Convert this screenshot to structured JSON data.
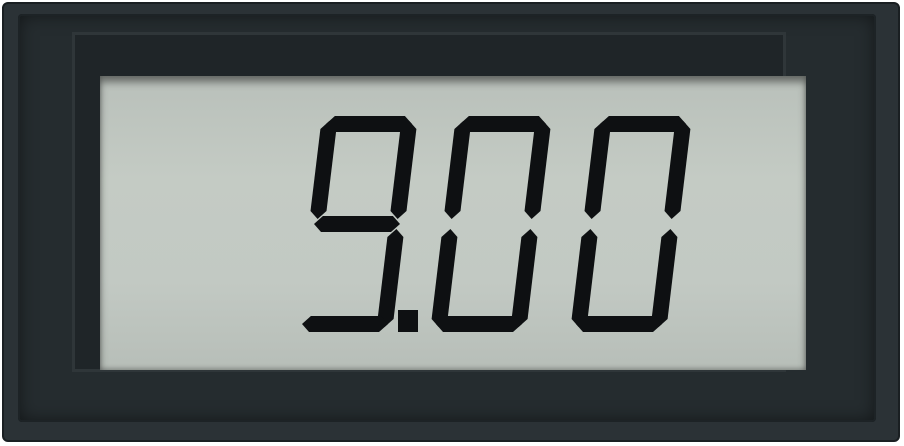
{
  "display": {
    "reading": "9.00",
    "digits": [
      "9",
      "0",
      "0"
    ],
    "decimal_after_digit": 0
  },
  "colors": {
    "bezel": "#2b3236",
    "lcd_background": "#c2c9c3",
    "segment": "#0e1012"
  }
}
